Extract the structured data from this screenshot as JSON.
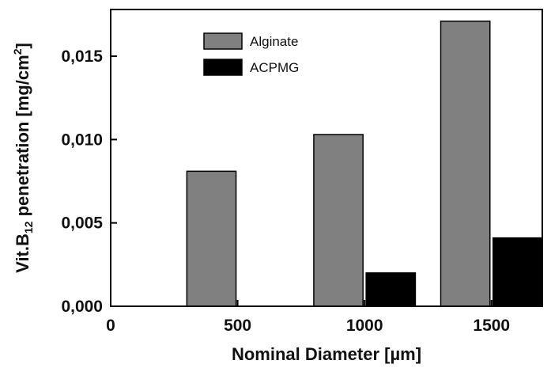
{
  "chart_data": {
    "type": "bar",
    "x": [
      500,
      1000,
      1500
    ],
    "series": [
      {
        "name": "Alginate",
        "values": [
          0.0081,
          0.0103,
          0.0171
        ],
        "color": "#808080"
      },
      {
        "name": "ACPMG",
        "values": [
          0.0,
          0.002,
          0.0041
        ],
        "color": "#000000"
      }
    ],
    "xlabel": "Nominal Diameter  [µm]",
    "ylabel": {
      "pre": "Vit.B",
      "sub": "12",
      "mid": " penetration [mg/cm",
      "sup": "2",
      "post": "]"
    },
    "xlim": [
      0,
      1700
    ],
    "ylim": [
      0,
      0.0178
    ],
    "xticks": [
      {
        "value": 0,
        "label": "0"
      },
      {
        "value": 500,
        "label": "500"
      },
      {
        "value": 1000,
        "label": "1000"
      },
      {
        "value": 1500,
        "label": "1500"
      }
    ],
    "yticks": [
      {
        "value": 0,
        "label": "0,000"
      },
      {
        "value": 0.005,
        "label": "0,005"
      },
      {
        "value": 0.01,
        "label": "0,010"
      },
      {
        "value": 0.015,
        "label": "0,015"
      }
    ],
    "legend": {
      "position": "top-left"
    },
    "grid": false
  }
}
